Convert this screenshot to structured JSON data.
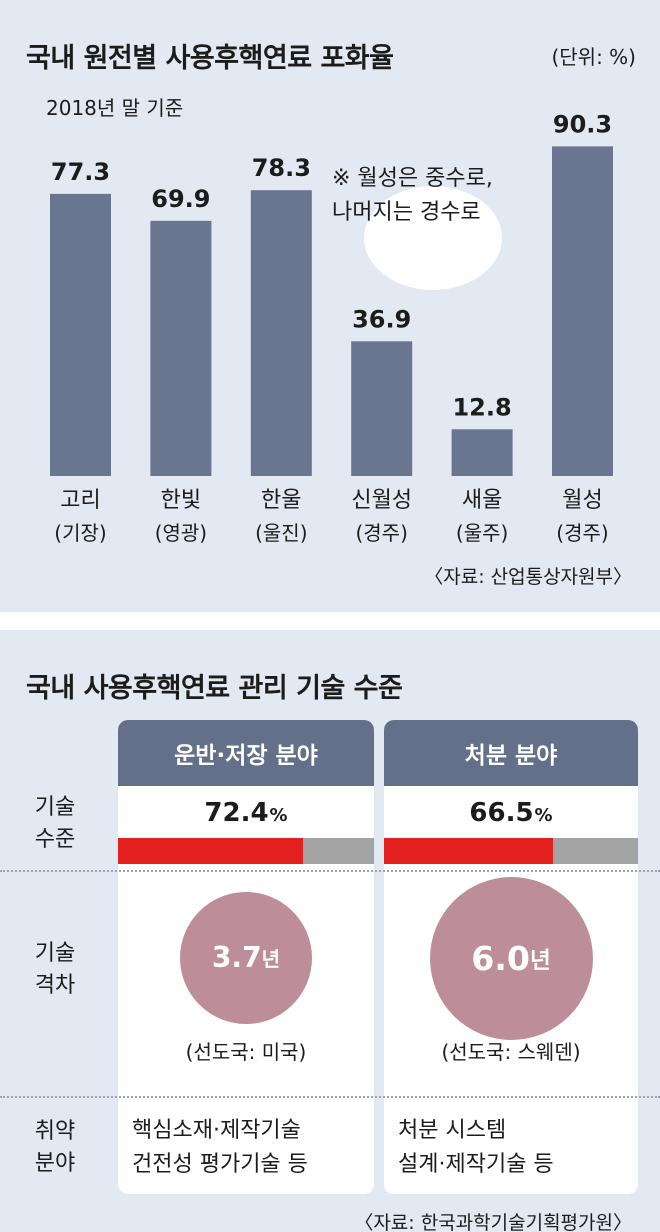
{
  "chart_data": {
    "type": "bar",
    "title": "국내 원전별 사용후핵연료 포화율",
    "unit": "(단위: %)",
    "basis": "2018년 말 기준",
    "note": [
      "※ 월성은 중수로,",
      "나머지는 경수로"
    ],
    "categories": [
      "고리",
      "한빛",
      "한울",
      "신월성",
      "새울",
      "월성"
    ],
    "subcategories": [
      "(기장)",
      "(영광)",
      "(울진)",
      "(경주)",
      "(울주)",
      "(경주)"
    ],
    "values": [
      77.3,
      69.9,
      78.3,
      36.9,
      12.8,
      90.3
    ],
    "data_labels": [
      "77.3",
      "69.9",
      "78.3",
      "36.9",
      "12.8",
      "90.3"
    ],
    "ylim": [
      0,
      100
    ],
    "bar_color": "#6a7590",
    "source": "〈자료: 산업통상자원부〉"
  },
  "tech": {
    "title": "국내 사용후핵연료 관리 기술 수준",
    "row_labels": {
      "level": [
        "기술",
        "수준"
      ],
      "gap": [
        "기술",
        "격차"
      ],
      "weak": [
        "취약",
        "분야"
      ]
    },
    "columns": [
      {
        "header": "운반·저장 분야",
        "level_value": "72.4",
        "level_unit": "%",
        "level_fraction": 0.724,
        "gap_value": "3.7",
        "gap_unit": "년",
        "gap_years": 3.7,
        "leader": "(선도국: 미국)",
        "weak": [
          "핵심소재·제작기술",
          "건전성 평가기술 등"
        ]
      },
      {
        "header": "처분 분야",
        "level_value": "66.5",
        "level_unit": "%",
        "level_fraction": 0.665,
        "gap_value": "6.0",
        "gap_unit": "년",
        "gap_years": 6.0,
        "leader": "(선도국: 스웨덴)",
        "weak": [
          "처분 시스템",
          "설계·제작기술 등"
        ]
      }
    ],
    "source": "〈자료: 한국과학기술기획평가원〉",
    "colors": {
      "header": "#646f8a",
      "fill": "#e2201e",
      "track": "#a4a4a4",
      "circle": "#bd8e9a"
    }
  }
}
